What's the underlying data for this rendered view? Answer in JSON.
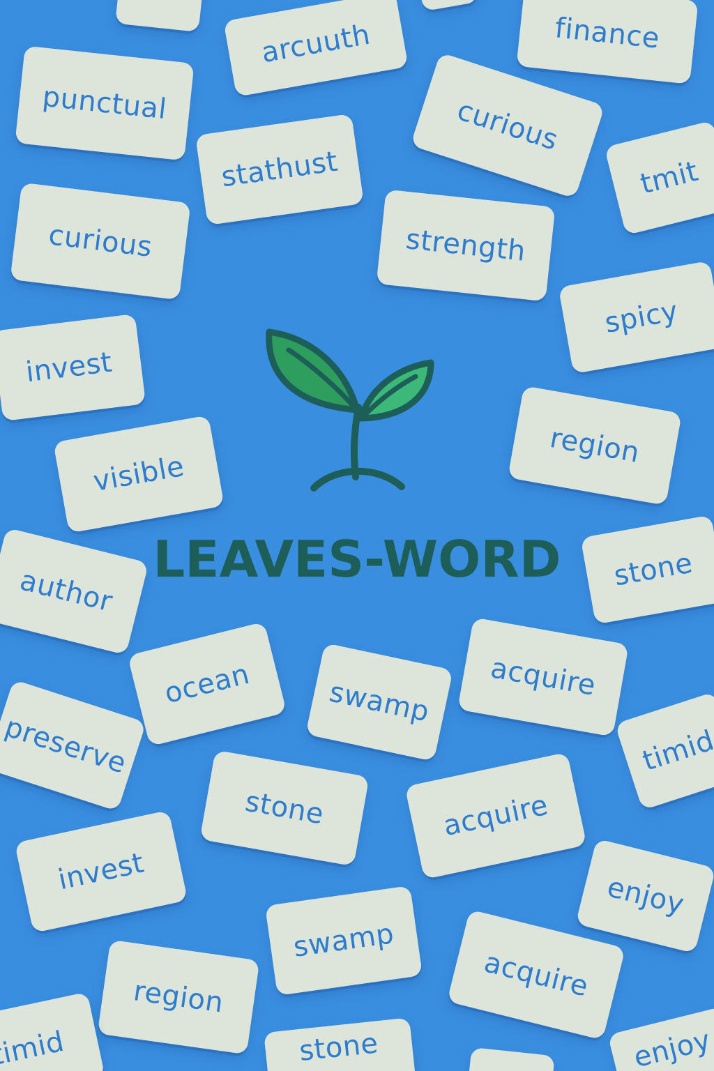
{
  "app": {
    "title": "LEAVES-WORD",
    "logo_icon": "sprout-icon",
    "colors": {
      "background": "#3a8ee0",
      "card": "#dde4d9",
      "card_text": "#2e7ccd",
      "title": "#1d5e58",
      "leaf_dark": "#2e9e5e",
      "leaf_light": "#3cb878",
      "stem": "#1d5e58"
    }
  },
  "cards": [
    {
      "word": "arcuuth"
    },
    {
      "word": "finance"
    },
    {
      "word": "punctual"
    },
    {
      "word": "curious"
    },
    {
      "word": "stathust"
    },
    {
      "word": "tmit"
    },
    {
      "word": "curious"
    },
    {
      "word": "strength"
    },
    {
      "word": "spicy"
    },
    {
      "word": "invest"
    },
    {
      "word": "region"
    },
    {
      "word": "visible"
    },
    {
      "word": "author"
    },
    {
      "word": "stone"
    },
    {
      "word": "ocean"
    },
    {
      "word": "swamp"
    },
    {
      "word": "acquire"
    },
    {
      "word": "preserve"
    },
    {
      "word": "timid"
    },
    {
      "word": "stone"
    },
    {
      "word": "acquire"
    },
    {
      "word": "invest"
    },
    {
      "word": "enjoy"
    },
    {
      "word": "swamp"
    },
    {
      "word": "acquire"
    },
    {
      "word": "region"
    },
    {
      "word": "timid"
    },
    {
      "word": "stone"
    },
    {
      "word": "enjoy"
    }
  ]
}
